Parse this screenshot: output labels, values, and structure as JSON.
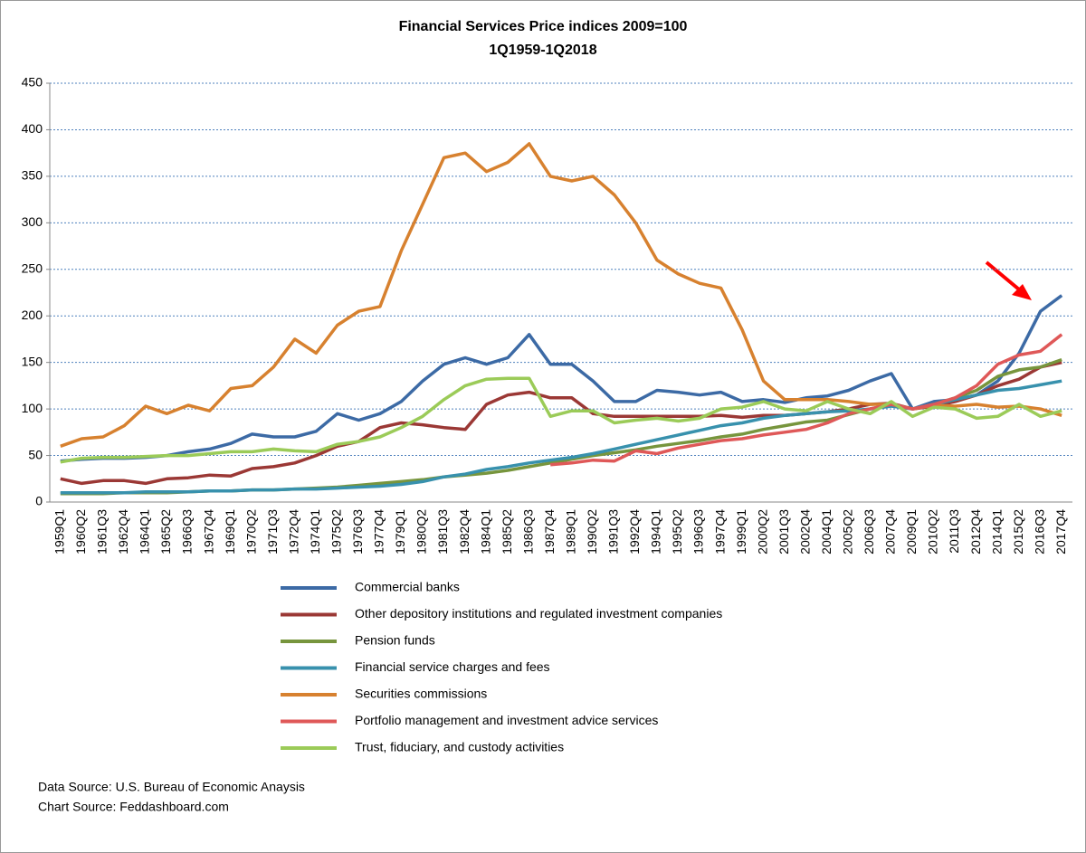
{
  "chart_data": {
    "type": "line",
    "title": "Financial  Services Price indices 2009=100",
    "subtitle": "1Q1959-1Q2018",
    "categories": [
      "1959Q1",
      "1960Q2",
      "1961Q3",
      "1962Q4",
      "1964Q1",
      "1965Q2",
      "1966Q3",
      "1967Q4",
      "1969Q1",
      "1970Q2",
      "1971Q3",
      "1972Q4",
      "1974Q1",
      "1975Q2",
      "1976Q3",
      "1977Q4",
      "1979Q1",
      "1980Q2",
      "1981Q3",
      "1982Q4",
      "1984Q1",
      "1985Q2",
      "1986Q3",
      "1987Q4",
      "1989Q1",
      "1990Q2",
      "1991Q3",
      "1992Q4",
      "1994Q1",
      "1995Q2",
      "1996Q3",
      "1997Q4",
      "1999Q1",
      "2000Q2",
      "2001Q3",
      "2002Q4",
      "2004Q1",
      "2005Q2",
      "2006Q3",
      "2007Q4",
      "2009Q1",
      "2010Q2",
      "2011Q3",
      "2012Q4",
      "2014Q1",
      "2015Q2",
      "2016Q3",
      "2017Q4"
    ],
    "ylim": [
      0,
      450
    ],
    "yticks": [
      0,
      50,
      100,
      150,
      200,
      250,
      300,
      350,
      400,
      450
    ],
    "grid": true,
    "series": [
      {
        "name": "Commercial banks",
        "color": "#3c6aa5",
        "values": [
          44,
          46,
          47,
          47,
          48,
          50,
          54,
          57,
          63,
          73,
          70,
          70,
          76,
          95,
          88,
          95,
          108,
          130,
          148,
          155,
          148,
          155,
          180,
          148,
          148,
          130,
          108,
          108,
          120,
          118,
          115,
          118,
          108,
          110,
          107,
          112,
          114,
          120,
          130,
          138,
          100,
          108,
          110,
          115,
          130,
          160,
          205,
          222
        ]
      },
      {
        "name": "Other depository institutions and regulated investment companies",
        "color": "#9b3835",
        "values": [
          25,
          20,
          23,
          23,
          20,
          25,
          26,
          29,
          28,
          36,
          38,
          42,
          50,
          60,
          65,
          80,
          85,
          83,
          80,
          78,
          105,
          115,
          118,
          112,
          112,
          95,
          92,
          92,
          92,
          92,
          92,
          93,
          91,
          93,
          93,
          95,
          97,
          100,
          105,
          106,
          100,
          103,
          108,
          115,
          125,
          132,
          145,
          150
        ]
      },
      {
        "name": "Pension funds",
        "color": "#77953d",
        "values": [
          9,
          9,
          9,
          10,
          10,
          10,
          11,
          12,
          12,
          13,
          13,
          14,
          15,
          16,
          18,
          20,
          22,
          24,
          27,
          29,
          31,
          34,
          38,
          42,
          46,
          50,
          53,
          56,
          60,
          63,
          66,
          70,
          73,
          78,
          82,
          86,
          88,
          94,
          100,
          105,
          100,
          105,
          112,
          120,
          135,
          142,
          145,
          153
        ]
      },
      {
        "name": "Financial service charges and fees",
        "color": "#3891ad",
        "values": [
          10,
          10,
          10,
          10,
          11,
          11,
          11,
          12,
          12,
          13,
          13,
          14,
          14,
          15,
          16,
          17,
          19,
          22,
          27,
          30,
          35,
          38,
          42,
          45,
          48,
          52,
          57,
          62,
          67,
          72,
          77,
          82,
          85,
          90,
          93,
          95,
          97,
          98,
          100,
          103,
          100,
          105,
          110,
          115,
          120,
          122,
          126,
          130
        ]
      },
      {
        "name": "Securities commissions",
        "color": "#d7812f",
        "values": [
          60,
          68,
          70,
          82,
          103,
          95,
          104,
          98,
          122,
          125,
          145,
          175,
          160,
          190,
          205,
          210,
          270,
          320,
          370,
          375,
          355,
          365,
          385,
          350,
          345,
          350,
          330,
          300,
          260,
          245,
          235,
          230,
          185,
          130,
          110,
          110,
          110,
          108,
          105,
          105,
          100,
          104,
          103,
          105,
          102,
          103,
          100,
          93
        ]
      },
      {
        "name": "Portfolio management and investment advice services",
        "color": "#df5858",
        "values": [
          null,
          null,
          null,
          null,
          null,
          null,
          null,
          null,
          null,
          null,
          null,
          null,
          null,
          null,
          null,
          null,
          null,
          null,
          null,
          null,
          null,
          null,
          null,
          40,
          42,
          45,
          44,
          55,
          52,
          58,
          62,
          66,
          68,
          72,
          75,
          78,
          85,
          95,
          100,
          105,
          100,
          105,
          112,
          125,
          148,
          158,
          162,
          180
        ]
      },
      {
        "name": "Trust, fiduciary, and custody activities",
        "color": "#9bcb58",
        "values": [
          43,
          47,
          48,
          48,
          49,
          50,
          50,
          52,
          54,
          54,
          57,
          55,
          54,
          62,
          65,
          70,
          80,
          92,
          110,
          125,
          132,
          133,
          133,
          92,
          98,
          98,
          85,
          88,
          90,
          87,
          90,
          100,
          102,
          108,
          100,
          98,
          108,
          100,
          95,
          108,
          92,
          102,
          100,
          90,
          92,
          105,
          92,
          98
        ]
      }
    ],
    "source_lines": [
      "Data Source: U.S. Bureau of Economic Anaysis",
      "Chart Source: Feddashboard.com"
    ]
  }
}
